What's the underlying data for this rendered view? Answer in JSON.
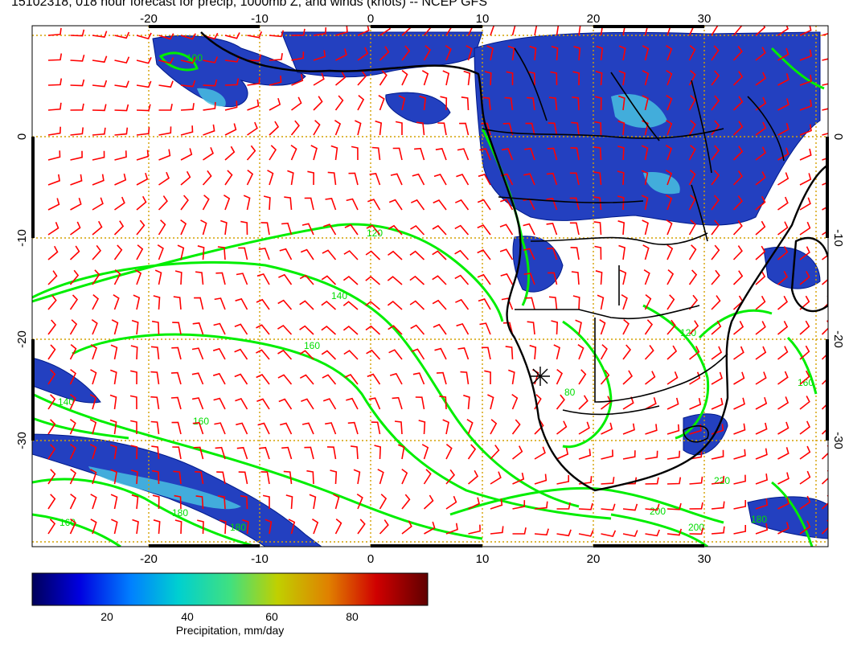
{
  "title": "15102318, 018 hour forecast for precip, 1000mb Z, and winds (knots) -- NCEP GFS",
  "map": {
    "lon_ticks": [
      -20,
      -10,
      0,
      10,
      20,
      30
    ],
    "lat_ticks": [
      0,
      -10,
      -20,
      -30
    ],
    "lon_range": [
      -30,
      40
    ],
    "lat_range": [
      -40,
      10
    ],
    "contour_labels": [
      "100",
      "120",
      "140",
      "160",
      "140",
      "160",
      "180",
      "200",
      "200",
      "220",
      "180",
      "160",
      "120",
      "80",
      "180",
      "160"
    ],
    "colors": {
      "frame": "#000000",
      "wind_barbs": "#ff0000",
      "height_contours": "#00ee00",
      "gridlines": "#d4a000",
      "coastlines": "#000000"
    }
  },
  "colorbar": {
    "ticks": [
      "20",
      "40",
      "60",
      "80"
    ],
    "range": [
      0,
      100
    ],
    "label": "Precipitation, mm/day",
    "stops": [
      "#00005a",
      "#0000e0",
      "#0080ff",
      "#00d0d0",
      "#40e080",
      "#c0d000",
      "#e08000",
      "#d00000",
      "#600000"
    ]
  }
}
